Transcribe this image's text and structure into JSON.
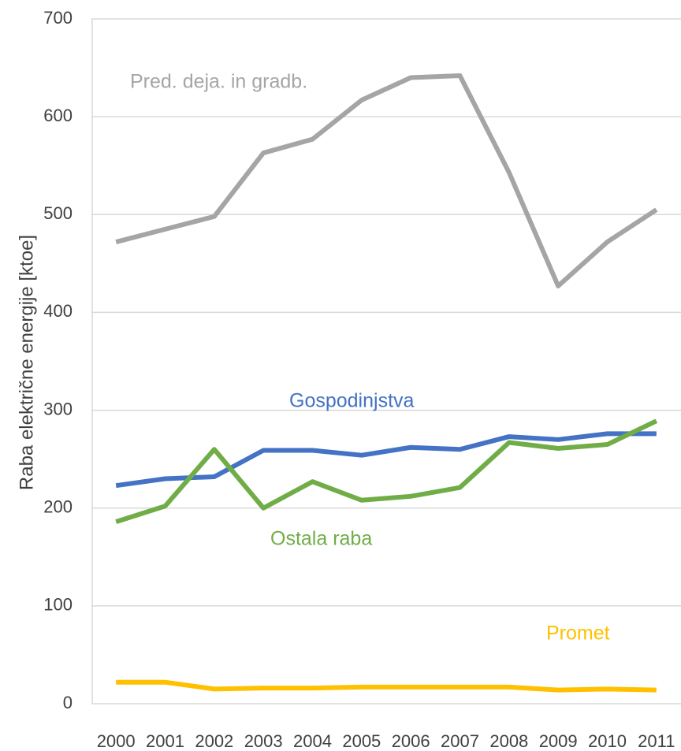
{
  "chart_data": {
    "type": "line",
    "y_label": "Raba električne energije [ktoe]",
    "categories": [
      "2000",
      "2001",
      "2002",
      "2003",
      "2004",
      "2005",
      "2006",
      "2007",
      "2008",
      "2009",
      "2010",
      "2011"
    ],
    "series": [
      {
        "name": "Pred. deja. in gradb.",
        "color": "#a5a5a5",
        "values": [
          472,
          485,
          498,
          563,
          577,
          617,
          640,
          642,
          543,
          427,
          472,
          505
        ]
      },
      {
        "name": "Gospodinjstva",
        "color": "#4472c4",
        "values": [
          223,
          230,
          232,
          259,
          259,
          254,
          262,
          260,
          273,
          270,
          276,
          276
        ]
      },
      {
        "name": "Ostala raba",
        "color": "#70ad47",
        "values": [
          186,
          202,
          260,
          200,
          227,
          208,
          212,
          221,
          267,
          261,
          265,
          289
        ]
      },
      {
        "name": "Promet",
        "color": "#ffc000",
        "values": [
          22,
          22,
          15,
          16,
          16,
          17,
          17,
          17,
          17,
          14,
          15,
          14
        ]
      }
    ],
    "ylim": [
      0,
      700
    ],
    "yticks": [
      0,
      100,
      200,
      300,
      400,
      500,
      600,
      700
    ],
    "grid": true
  }
}
